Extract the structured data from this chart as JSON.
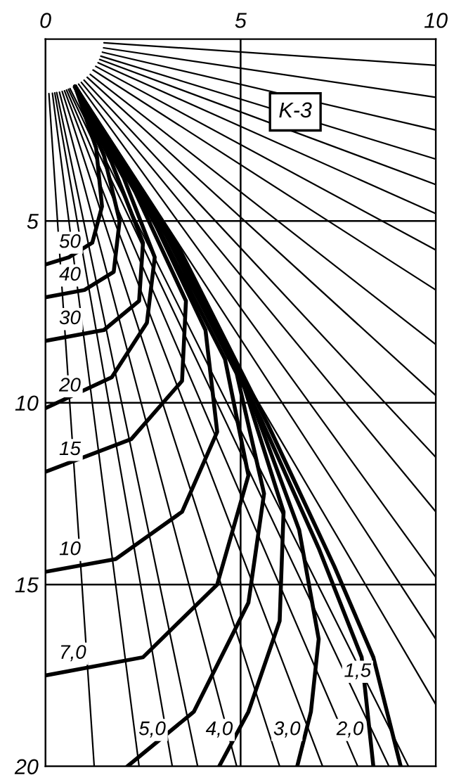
{
  "chart_data": {
    "type": "line",
    "xlim": [
      0,
      10
    ],
    "ylim": [
      20,
      0
    ],
    "xticks": [
      0,
      5,
      10
    ],
    "yticks": [
      5,
      10,
      15,
      20
    ],
    "grid": true,
    "legend": false,
    "annotations": [
      {
        "text": "K-3",
        "x": 6.4,
        "y": 2.0
      }
    ],
    "series": [
      {
        "name": "50",
        "color": "#000000",
        "x": [
          0.76,
          1.3,
          1.45,
          1.2,
          0.6,
          0
        ],
        "values": [
          1.3,
          3.0,
          4.6,
          5.6,
          6.0,
          6.2
        ]
      },
      {
        "name": "40",
        "color": "#000000",
        "x": [
          0.76,
          1.5,
          1.9,
          1.75,
          1.0,
          0
        ],
        "values": [
          1.3,
          3.2,
          5.0,
          6.4,
          6.9,
          7.1
        ]
      },
      {
        "name": "30",
        "color": "#000000",
        "x": [
          0.76,
          1.7,
          2.5,
          2.4,
          1.5,
          0
        ],
        "values": [
          1.3,
          3.4,
          5.6,
          7.2,
          8.0,
          8.3
        ]
      },
      {
        "name": "20",
        "color": "#000000",
        "x": [
          0.76,
          2.0,
          2.8,
          2.6,
          1.7,
          0
        ],
        "values": [
          1.3,
          3.8,
          6.0,
          7.8,
          9.3,
          10.15
        ]
      },
      {
        "name": "15",
        "color": "#000000",
        "x": [
          0.76,
          2.3,
          3.6,
          3.5,
          2.2,
          0
        ],
        "values": [
          1.3,
          4.2,
          7.2,
          9.4,
          11.0,
          11.9
        ]
      },
      {
        "name": "10",
        "color": "#000000",
        "x": [
          0.76,
          2.6,
          4.1,
          4.4,
          3.5,
          1.8,
          0
        ],
        "values": [
          1.3,
          4.6,
          8.0,
          10.8,
          13.0,
          14.3,
          14.65
        ]
      },
      {
        "name": "7,0",
        "color": "#000000",
        "x": [
          0.76,
          2.8,
          4.6,
          5.2,
          4.4,
          2.5,
          0
        ],
        "values": [
          1.3,
          5.0,
          8.8,
          12.0,
          15.0,
          17.0,
          17.5
        ]
      },
      {
        "name": "5,0",
        "color": "#000000",
        "x": [
          0.76,
          3.0,
          4.9,
          5.6,
          5.2,
          3.8,
          2.1
        ],
        "values": [
          1.3,
          5.2,
          9.2,
          12.5,
          15.5,
          18.5,
          20
        ]
      },
      {
        "name": "4,0",
        "color": "#000000",
        "x": [
          0.76,
          3.1,
          5.1,
          6.1,
          6.0,
          5.2,
          4.45
        ],
        "values": [
          1.3,
          5.4,
          9.6,
          13.0,
          16.0,
          18.5,
          20
        ]
      },
      {
        "name": "3,0",
        "color": "#000000",
        "x": [
          0.76,
          3.2,
          5.3,
          6.5,
          7.0,
          6.8,
          6.45
        ],
        "values": [
          1.3,
          5.5,
          10.0,
          13.5,
          16.5,
          18.5,
          20
        ]
      },
      {
        "name": "2,0",
        "color": "#000000",
        "x": [
          0.76,
          3.3,
          5.5,
          7.0,
          8.1,
          8.4
        ],
        "values": [
          1.3,
          5.6,
          10.4,
          14.0,
          17.0,
          20
        ]
      },
      {
        "name": "1,5",
        "color": "#000000",
        "x": [
          0.76,
          3.4,
          5.7,
          7.4,
          8.4,
          9.1
        ],
        "values": [
          1.3,
          5.7,
          10.6,
          14.5,
          17.0,
          20
        ]
      },
      {
        "color": "#000000",
        "x": [
          1.5,
          10
        ],
        "values": [
          0.1,
          0.72
        ]
      },
      {
        "color": "#000000",
        "x": [
          1.49,
          10
        ],
        "values": [
          0.24,
          1.6
        ]
      },
      {
        "color": "#000000",
        "x": [
          1.46,
          10
        ],
        "values": [
          0.36,
          2.5
        ]
      },
      {
        "color": "#000000",
        "x": [
          1.42,
          10
        ],
        "values": [
          0.47,
          3.3
        ]
      },
      {
        "color": "#000000",
        "x": [
          1.39,
          10
        ],
        "values": [
          0.56,
          4.0
        ]
      },
      {
        "color": "#000000",
        "x": [
          1.35,
          10
        ],
        "values": [
          0.65,
          4.8
        ]
      },
      {
        "color": "#000000",
        "x": [
          1.29,
          10
        ],
        "values": [
          0.75,
          5.8
        ]
      },
      {
        "color": "#000000",
        "x": [
          1.22,
          10
        ],
        "values": [
          0.85,
          6.9
        ]
      },
      {
        "color": "#000000",
        "x": [
          1.15,
          10
        ],
        "values": [
          0.97,
          8.4
        ]
      },
      {
        "color": "#000000",
        "x": [
          1.07,
          10
        ],
        "values": [
          1.05,
          9.8
        ]
      },
      {
        "color": "#000000",
        "x": [
          0.99,
          10
        ],
        "values": [
          1.13,
          11.5
        ]
      },
      {
        "color": "#000000",
        "x": [
          0.92,
          10
        ],
        "values": [
          1.19,
          13.0
        ]
      },
      {
        "color": "#000000",
        "x": [
          0.85,
          10
        ],
        "values": [
          1.24,
          14.8
        ]
      },
      {
        "color": "#000000",
        "x": [
          0.78,
          10
        ],
        "values": [
          1.28,
          16.5
        ]
      },
      {
        "color": "#000000",
        "x": [
          0.72,
          10
        ],
        "values": [
          1.32,
          18.3
        ]
      },
      {
        "color": "#000000",
        "x": [
          0.63,
          9.3
        ],
        "values": [
          1.36,
          20
        ]
      },
      {
        "color": "#000000",
        "x": [
          0.59,
          8.8
        ],
        "values": [
          1.38,
          20
        ]
      },
      {
        "color": "#000000",
        "x": [
          0.54,
          8.0
        ],
        "values": [
          1.4,
          20
        ]
      },
      {
        "color": "#000000",
        "x": [
          0.49,
          7.1
        ],
        "values": [
          1.42,
          20
        ]
      },
      {
        "color": "#000000",
        "x": [
          0.43,
          6.0
        ],
        "values": [
          1.44,
          20
        ]
      },
      {
        "color": "#000000",
        "x": [
          0.36,
          4.9
        ],
        "values": [
          1.46,
          20
        ]
      },
      {
        "color": "#000000",
        "x": [
          0.29,
          3.9
        ],
        "values": [
          1.47,
          20
        ]
      },
      {
        "color": "#000000",
        "x": [
          0.24,
          3.25
        ],
        "values": [
          1.48,
          20
        ]
      },
      {
        "color": "#000000",
        "x": [
          0.18,
          2.4
        ],
        "values": [
          1.49,
          20
        ]
      },
      {
        "color": "#000000",
        "x": [
          0.09,
          1.25
        ],
        "values": [
          1.5,
          20
        ]
      }
    ]
  }
}
